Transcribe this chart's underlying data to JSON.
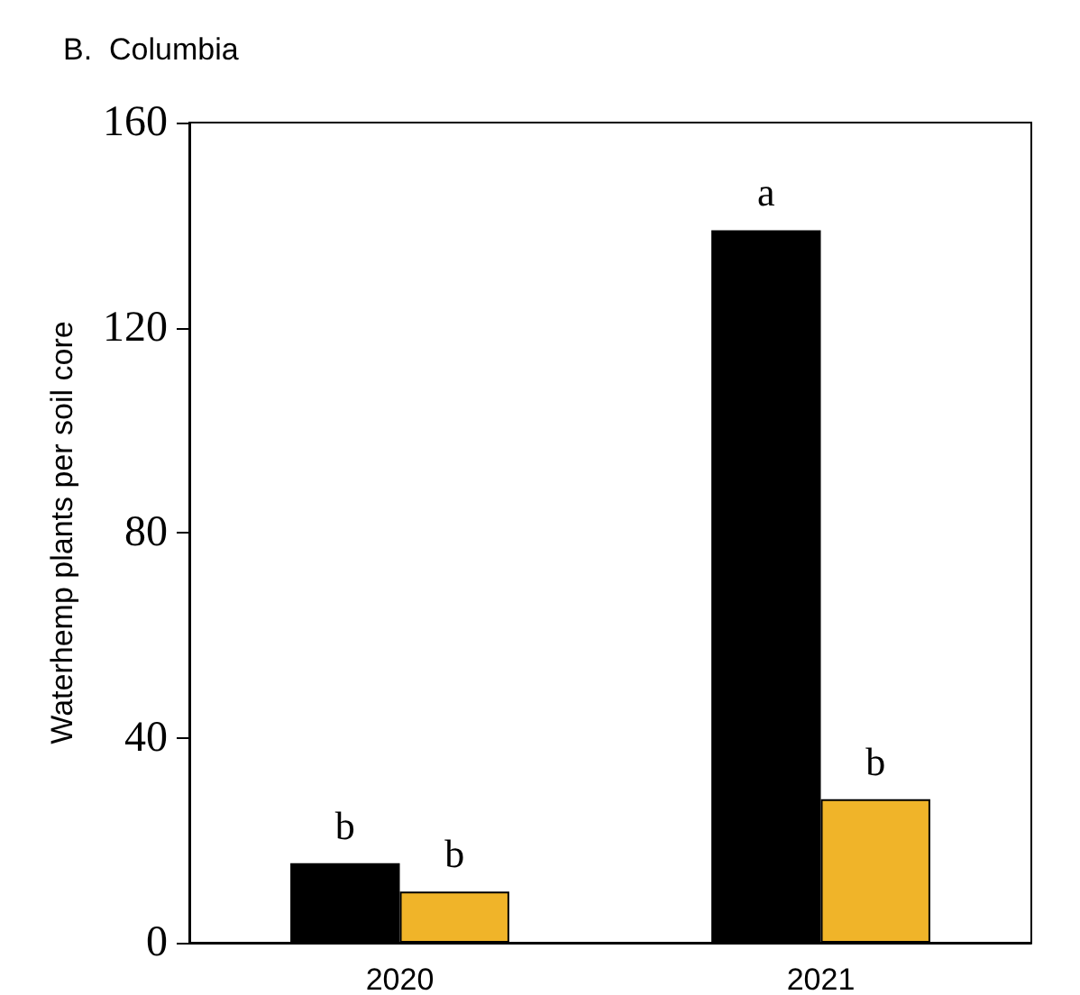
{
  "chart_data": {
    "type": "bar",
    "title": "B.  Columbia",
    "ylabel": "Waterhemp plants per soil core",
    "categories": [
      "2020",
      "2021"
    ],
    "series": [
      {
        "color": "#000000",
        "values": [
          15.5,
          139
        ],
        "value_labels": [
          "b",
          "a"
        ]
      },
      {
        "color": "#f0b429",
        "values": [
          10,
          28
        ],
        "value_labels": [
          "b",
          "b"
        ]
      }
    ],
    "ylim": [
      0,
      160
    ],
    "yticks": [
      0,
      40,
      80,
      120,
      160
    ],
    "grid": false
  }
}
